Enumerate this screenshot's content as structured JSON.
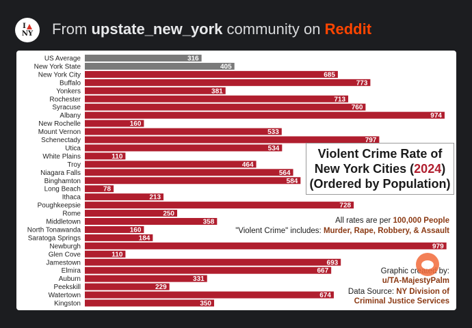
{
  "header": {
    "logo_top": "I",
    "logo_bottom": "NY",
    "prefix": "From ",
    "community": "upstate_new_york",
    "middle": " community on ",
    "platform": "Reddit"
  },
  "colors": {
    "bar": "#b01e2e",
    "average_bar": "#7a7a7a",
    "accent_text": "#8b3a14",
    "platform": "#ff4500"
  },
  "chart_data": {
    "type": "bar",
    "orientation": "horizontal",
    "title": "Violent Crime Rate of New York Cities (2024) (Ordered by Population)",
    "categories": [
      "US Average",
      "New York State",
      "New York City",
      "Buffalo",
      "Yonkers",
      "Rochester",
      "Syracuse",
      "Albany",
      "New Rochelle",
      "Mount Vernon",
      "Schenectady",
      "Utica",
      "White Plains",
      "Troy",
      "Niagara Falls",
      "Binghamton",
      "Long Beach",
      "Ithaca",
      "Poughkeepsie",
      "Rome",
      "Middletown",
      "North Tonawanda",
      "Saratoga Springs",
      "Newburgh",
      "Glen Cove",
      "Jamestown",
      "Elmira",
      "Auburn",
      "Peekskill",
      "Watertown",
      "Kingston"
    ],
    "values": [
      316,
      405,
      685,
      773,
      381,
      713,
      760,
      974,
      160,
      533,
      797,
      534,
      110,
      464,
      564,
      584,
      78,
      213,
      728,
      250,
      358,
      160,
      184,
      979,
      110,
      693,
      667,
      331,
      229,
      674,
      350
    ],
    "reference_categories": [
      "US Average",
      "New York State"
    ],
    "xlim": [
      0,
      1000
    ],
    "grid": false,
    "legend": "none"
  },
  "info_box": {
    "line1": "Violent Crime Rate of",
    "line2_prefix": "New York Cities (",
    "year": "2024",
    "line2_suffix": ")",
    "line3": "(Ordered by Population)"
  },
  "notes": {
    "rates_prefix": "All rates are per ",
    "rates_highlight": "100,000 People",
    "definition_prefix": "\"Violent Crime\" includes: ",
    "definition_highlight": "Murder, Rape, Robbery, & Assault"
  },
  "credits": {
    "created_by_label": "Graphic created by:",
    "author": "u/TA-MajestyPalm",
    "source_label": "Data Source: ",
    "source_line1": "NY Division of",
    "source_line2": "Criminal Justice Services"
  }
}
